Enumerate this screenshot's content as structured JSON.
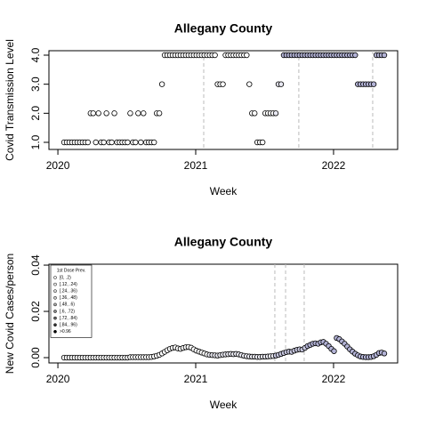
{
  "chart_data": [
    {
      "type": "scatter",
      "title": "Allegany County",
      "xlabel": "Week",
      "ylabel": "Covid Transmission Level",
      "xlim": [
        2019.935,
        2022.465
      ],
      "xticks": [
        2020,
        2021,
        2022
      ],
      "ylim": [
        0.755,
        4.153
      ],
      "yticks": [
        {
          "value": 1,
          "label": "1.0"
        },
        {
          "value": 2,
          "label": "2.0"
        },
        {
          "value": 3,
          "label": "3.0"
        },
        {
          "value": 4,
          "label": "4.0"
        }
      ],
      "vlines": [
        2021.058,
        2021.748,
        2022.284
      ],
      "x": [
        2020.045,
        2020.0642,
        2020.0834,
        2020.1026,
        2020.1218,
        2020.141,
        2020.1602,
        2020.1794,
        2020.1986,
        2020.2178,
        2020.237,
        2020.2562,
        2020.2754,
        2020.2946,
        2020.3138,
        2020.333,
        2020.3522,
        2020.3714,
        2020.3906,
        2020.4098,
        2020.429,
        2020.4482,
        2020.4674,
        2020.4866,
        2020.5058,
        2020.525,
        2020.5442,
        2020.5634,
        2020.5826,
        2020.6018,
        2020.621,
        2020.6402,
        2020.6594,
        2020.6786,
        2020.6978,
        2020.717,
        2020.7362,
        2020.7554,
        2020.7746,
        2020.7938,
        2020.813,
        2020.8322,
        2020.8514,
        2020.8706,
        2020.8898,
        2020.909,
        2020.9282,
        2020.9474,
        2020.9666,
        2020.9858,
        2021.005,
        2021.0242,
        2021.0434,
        2021.0626,
        2021.0818,
        2021.101,
        2021.1202,
        2021.1394,
        2021.1586,
        2021.1778,
        2021.197,
        2021.2162,
        2021.2354,
        2021.2546,
        2021.2738,
        2021.293,
        2021.3122,
        2021.3314,
        2021.3506,
        2021.3698,
        2021.389,
        2021.4082,
        2021.4274,
        2021.4466,
        2021.4658,
        2021.485,
        2021.5042,
        2021.5234,
        2021.5426,
        2021.5618,
        2021.581,
        2021.6002,
        2021.6194,
        2021.6386,
        2021.6578,
        2021.677,
        2021.6962,
        2021.7154,
        2021.7346,
        2021.7538,
        2021.773,
        2021.7922,
        2021.8114,
        2021.8306,
        2021.8498,
        2021.869,
        2021.8882,
        2021.9074,
        2021.9266,
        2021.9458,
        2021.965,
        2021.9842,
        2022.0034,
        2022.0226,
        2022.0418,
        2022.061,
        2022.0802,
        2022.0994,
        2022.1186,
        2022.1378,
        2022.157,
        2022.1762,
        2022.1954,
        2022.2146,
        2022.2338,
        2022.253,
        2022.2722,
        2022.2914,
        2022.3106,
        2022.3298,
        2022.349,
        2022.3682
      ],
      "values": [
        1,
        1,
        1,
        1,
        1,
        1,
        1,
        1,
        1,
        1,
        2,
        2,
        1,
        2,
        1,
        1,
        2,
        1,
        1,
        2,
        1,
        1,
        1,
        1,
        1,
        2,
        1,
        1,
        2,
        1,
        2,
        1,
        1,
        1,
        1,
        2,
        2,
        3,
        4,
        4,
        4,
        4,
        4,
        4,
        4,
        4,
        4,
        4,
        4,
        4,
        4,
        4,
        4,
        4,
        4,
        4,
        4,
        4,
        3,
        3,
        3,
        4,
        4,
        4,
        4,
        4,
        4,
        4,
        4,
        4,
        3,
        2,
        2,
        1,
        1,
        1,
        2,
        2,
        2,
        2,
        2,
        3,
        3,
        4,
        4,
        4,
        4,
        4,
        4,
        4,
        4,
        4,
        4,
        4,
        4,
        4,
        4,
        4,
        4,
        4,
        4,
        4,
        4,
        4,
        4,
        4,
        4,
        4,
        4,
        4,
        4,
        3,
        3,
        3,
        3,
        3,
        3,
        3,
        4,
        4,
        4,
        4
      ],
      "colors": [
        "#ffffff",
        "#ffffff",
        "#ffffff",
        "#ffffff",
        "#ffffff",
        "#ffffff",
        "#ffffff",
        "#ffffff",
        "#ffffff",
        "#ffffff",
        "#ffffff",
        "#ffffff",
        "#ffffff",
        "#ffffff",
        "#ffffff",
        "#ffffff",
        "#ffffff",
        "#ffffff",
        "#ffffff",
        "#ffffff",
        "#ffffff",
        "#ffffff",
        "#ffffff",
        "#ffffff",
        "#ffffff",
        "#ffffff",
        "#ffffff",
        "#ffffff",
        "#ffffff",
        "#ffffff",
        "#ffffff",
        "#ffffff",
        "#ffffff",
        "#ffffff",
        "#ffffff",
        "#ffffff",
        "#ffffff",
        "#ffffff",
        "#ffffff",
        "#ffffff",
        "#ffffff",
        "#ffffff",
        "#ffffff",
        "#ffffff",
        "#ffffff",
        "#ffffff",
        "#ffffff",
        "#ffffff",
        "#ffffff",
        "#ffffff",
        "#ffffff",
        "#ffffff",
        "#ffffff",
        "#ffffff",
        "#ffffff",
        "#ffffff",
        "#ffffff",
        "#ffffff",
        "#ffffff",
        "#ffffff",
        "#ffffff",
        "#ffffff",
        "#ffffff",
        "#ffffff",
        "#ffffff",
        "#ffffff",
        "#ffffff",
        "#ffffff",
        "#ffffff",
        "#ffffff",
        "#ffffff",
        "#ffffff",
        "#ffffff",
        "#ffffff",
        "#ffffff",
        "#ffffff",
        "#ffffff",
        "#ffffff",
        "#ffffff",
        "#ffffff",
        "#e8e8f2",
        "#e8e8f2",
        "#e8e8f2",
        "#b3b3d6",
        "#b3b3d6",
        "#b3b3d6",
        "#b3b3d6",
        "#b3b3d6",
        "#b3b3d6",
        "#b3b3d6",
        "#b3b3d6",
        "#b3b3d6",
        "#b3b3d6",
        "#b3b3d6",
        "#b3b3d6",
        "#b3b3d6",
        "#b3b3d6",
        "#b3b3d6",
        "#b3b3d6",
        "#b3b3d6",
        "#b3b3d6",
        "#b3b3d6",
        "#b3b3d6",
        "#b3b3d6",
        "#b3b3d6",
        "#b3b3d6",
        "#b3b3d6",
        "#b3b3d6",
        "#b3b3d6",
        "#b3b3d6",
        "#b3b3d6",
        "#b3b3d6",
        "#b3b3d6",
        "#b3b3d6",
        "#b3b3d6",
        "#b3b3d6",
        "#b3b3d6",
        "#b3b3d6",
        "#b3b3d6",
        "#b3b3d6",
        "#b3b3d6",
        "#b3b3d6"
      ]
    },
    {
      "type": "scatter",
      "title": "Allegany County",
      "xlabel": "Week",
      "ylabel": "New Covid Cases/person",
      "xlim": [
        2019.935,
        2022.465
      ],
      "xticks": [
        2020,
        2021,
        2022
      ],
      "ylim": [
        -0.0023,
        0.0404
      ],
      "yticks": [
        {
          "value": 0,
          "label": "0.00"
        },
        {
          "value": 0.02,
          "label": "0.02"
        },
        {
          "value": 0.04,
          "label": "0.04"
        }
      ],
      "vlines": [
        2021.574,
        2021.652,
        2021.787
      ],
      "legend": {
        "title": "1st Dose Prev.",
        "position": "top-left",
        "labels": [
          "[0, .2)",
          "[.12, .24)",
          "[.24, .36)",
          "[.36, .48)",
          "[.48, .6)",
          "[.6, .72)",
          "[.72, .84)",
          "[.84, .96)",
          ">0.96"
        ],
        "colors": [
          "#ffffff",
          "#eeeeee",
          "#dddddd",
          "#cccccc",
          "#aaaaaa",
          "#888888",
          "#666666",
          "#333333",
          "#000000"
        ]
      },
      "x": [
        2020.045,
        2020.0642,
        2020.0834,
        2020.1026,
        2020.1218,
        2020.141,
        2020.1602,
        2020.1794,
        2020.1986,
        2020.2178,
        2020.237,
        2020.2562,
        2020.2754,
        2020.2946,
        2020.3138,
        2020.333,
        2020.3522,
        2020.3714,
        2020.3906,
        2020.4098,
        2020.429,
        2020.4482,
        2020.4674,
        2020.4866,
        2020.5058,
        2020.525,
        2020.5442,
        2020.5634,
        2020.5826,
        2020.6018,
        2020.621,
        2020.6402,
        2020.6594,
        2020.6786,
        2020.6978,
        2020.717,
        2020.7362,
        2020.7554,
        2020.7746,
        2020.7938,
        2020.813,
        2020.8322,
        2020.8514,
        2020.8706,
        2020.8898,
        2020.909,
        2020.9282,
        2020.9474,
        2020.9666,
        2020.9858,
        2021.005,
        2021.0242,
        2021.0434,
        2021.0626,
        2021.0818,
        2021.101,
        2021.1202,
        2021.1394,
        2021.1586,
        2021.1778,
        2021.197,
        2021.2162,
        2021.2354,
        2021.2546,
        2021.2738,
        2021.293,
        2021.3122,
        2021.3314,
        2021.3506,
        2021.3698,
        2021.389,
        2021.4082,
        2021.4274,
        2021.4466,
        2021.4658,
        2021.485,
        2021.5042,
        2021.5234,
        2021.5426,
        2021.5618,
        2021.581,
        2021.6002,
        2021.6194,
        2021.6386,
        2021.6578,
        2021.677,
        2021.6962,
        2021.7154,
        2021.7346,
        2021.7538,
        2021.773,
        2021.7922,
        2021.8114,
        2021.8306,
        2021.8498,
        2021.869,
        2021.8882,
        2021.9074,
        2021.9266,
        2021.9458,
        2021.965,
        2021.9842,
        2022.0034,
        2022.0226,
        2022.0418,
        2022.061,
        2022.0802,
        2022.0994,
        2022.1186,
        2022.1378,
        2022.157,
        2022.1762,
        2022.1954,
        2022.2146,
        2022.2338,
        2022.253,
        2022.2722,
        2022.2914,
        2022.3106,
        2022.3298,
        2022.349,
        2022.3682
      ],
      "values": [
        0,
        0,
        0,
        0,
        0,
        0,
        0,
        0,
        0,
        0,
        0,
        0,
        0,
        0,
        0,
        0,
        0,
        0,
        0,
        0,
        0,
        0,
        0,
        0,
        0,
        0.0002,
        0.0002,
        0.0002,
        0.0002,
        0.0002,
        0.0002,
        0.0002,
        0.0002,
        0.0003,
        0.0005,
        0.0008,
        0.0012,
        0.0018,
        0.0025,
        0.0032,
        0.0038,
        0.0042,
        0.0044,
        0.004,
        0.0038,
        0.0042,
        0.0045,
        0.0046,
        0.0043,
        0.0036,
        0.003,
        0.0026,
        0.0022,
        0.0018,
        0.0014,
        0.0012,
        0.0011,
        0.001,
        0.0009,
        0.0011,
        0.0013,
        0.0014,
        0.0015,
        0.0016,
        0.0015,
        0.0016,
        0.0014,
        0.0011,
        0.0008,
        0.0006,
        0.0005,
        0.0004,
        0.0004,
        0.0003,
        0.0003,
        0.0004,
        0.0004,
        0.0005,
        0.0006,
        0.0007,
        0.0009,
        0.0012,
        0.0016,
        0.002,
        0.0024,
        0.0026,
        0.0025,
        0.003,
        0.0034,
        0.0036,
        0.0035,
        0.0042,
        0.005,
        0.0055,
        0.006,
        0.0062,
        0.006,
        0.0066,
        0.0068,
        0.006,
        0.005,
        0.0038,
        0.0028,
        0.0085,
        0.008,
        0.007,
        0.006,
        0.0048,
        0.0036,
        0.0026,
        0.0017,
        0.001,
        0.0005,
        0.0003,
        0.0002,
        0.0002,
        0.0003,
        0.0006,
        0.0012,
        0.002,
        0.0022,
        0.0018
      ],
      "colors": [
        "#ffffff",
        "#ffffff",
        "#ffffff",
        "#ffffff",
        "#ffffff",
        "#ffffff",
        "#ffffff",
        "#ffffff",
        "#ffffff",
        "#ffffff",
        "#ffffff",
        "#ffffff",
        "#ffffff",
        "#ffffff",
        "#ffffff",
        "#ffffff",
        "#ffffff",
        "#ffffff",
        "#ffffff",
        "#ffffff",
        "#ffffff",
        "#ffffff",
        "#ffffff",
        "#ffffff",
        "#ffffff",
        "#ffffff",
        "#ffffff",
        "#ffffff",
        "#ffffff",
        "#ffffff",
        "#ffffff",
        "#ffffff",
        "#ffffff",
        "#ffffff",
        "#ffffff",
        "#ffffff",
        "#ffffff",
        "#ffffff",
        "#ffffff",
        "#ffffff",
        "#ffffff",
        "#ffffff",
        "#ffffff",
        "#ffffff",
        "#ffffff",
        "#ffffff",
        "#ffffff",
        "#ffffff",
        "#ffffff",
        "#ffffff",
        "#ffffff",
        "#ffffff",
        "#ffffff",
        "#ffffff",
        "#ffffff",
        "#ececf4",
        "#ececf4",
        "#ececf4",
        "#ececf4",
        "#ececf4",
        "#ececf4",
        "#ececf4",
        "#ececf4",
        "#ececf4",
        "#ececf4",
        "#ececf4",
        "#ececf4",
        "#ececf4",
        "#ececf4",
        "#ececf4",
        "#ececf4",
        "#ececf4",
        "#ececf4",
        "#ececf4",
        "#ececf4",
        "#ececf4",
        "#ececf4",
        "#ececf4",
        "#ececf4",
        "#ececf4",
        "#c8c8e0",
        "#c8c8e0",
        "#c8c8e0",
        "#c8c8e0",
        "#c8c8e0",
        "#c8c8e0",
        "#c8c8e0",
        "#c8c8e0",
        "#c8c8e0",
        "#c8c8e0",
        "#c8c8e0",
        "#c8c8e0",
        "#b3b3d6",
        "#b3b3d6",
        "#b3b3d6",
        "#b3b3d6",
        "#b3b3d6",
        "#b3b3d6",
        "#b3b3d6",
        "#b3b3d6",
        "#b3b3d6",
        "#b3b3d6",
        "#b3b3d6",
        "#b3b3d6",
        "#b3b3d6",
        "#b3b3d6",
        "#b3b3d6",
        "#b3b3d6",
        "#b3b3d6",
        "#b3b3d6",
        "#b3b3d6",
        "#b3b3d6",
        "#b3b3d6",
        "#b3b3d6",
        "#b3b3d6",
        "#b3b3d6",
        "#b3b3d6",
        "#b3b3d6",
        "#b3b3d6",
        "#b3b3d6",
        "#b3b3d6",
        "#b3b3d6"
      ]
    }
  ]
}
